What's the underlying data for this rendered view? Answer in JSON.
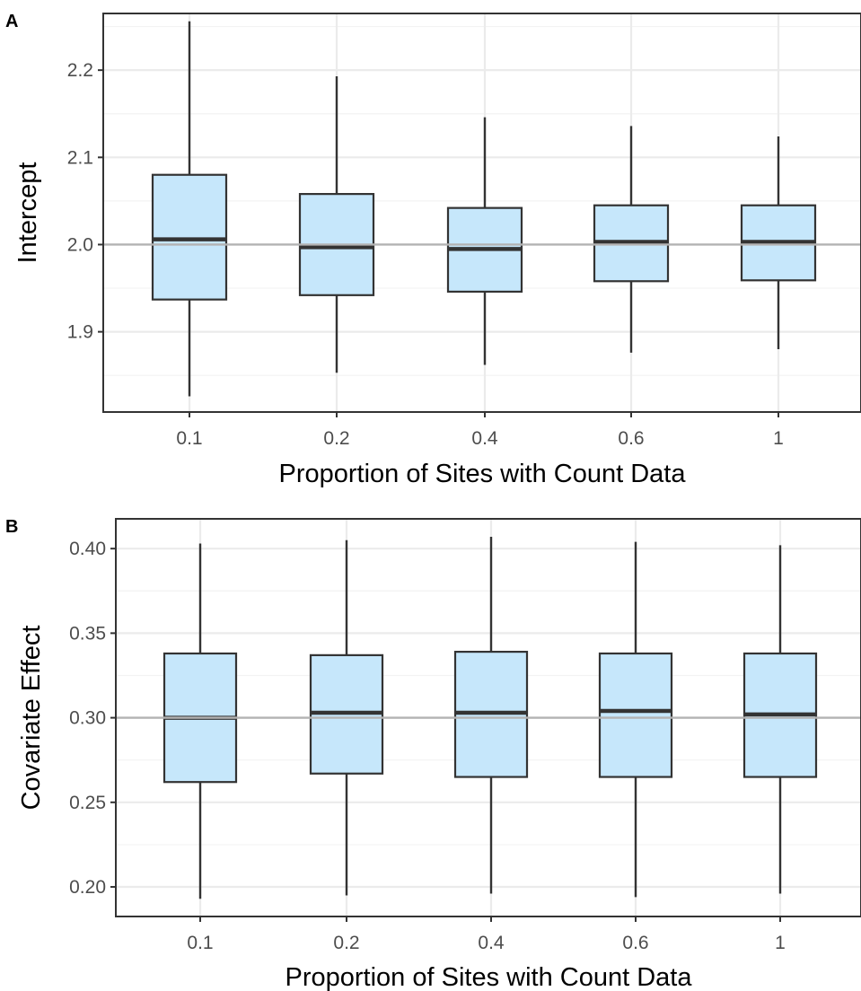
{
  "colors": {
    "box_fill": "#c6e7fb",
    "box_stroke": "#333333",
    "reference_line": "#b3b3b3",
    "grid_major": "#ebebeb",
    "grid_minor": "#f3f3f3",
    "panel_border": "#333333"
  },
  "chart_data": [
    {
      "type": "box",
      "panel_label": "A",
      "xlabel": "Proportion of Sites with Count Data",
      "ylabel": "Intercept",
      "categories": [
        "0.1",
        "0.2",
        "0.4",
        "0.6",
        "1"
      ],
      "yticks": [
        "1.9",
        "2.0",
        "2.1",
        "2.2"
      ],
      "ylim": [
        1.808,
        2.265
      ],
      "reference_line": 2.0,
      "boxes": [
        {
          "category": "0.1",
          "whisker_low": 1.826,
          "q1": 1.937,
          "median": 2.006,
          "q3": 2.08,
          "whisker_high": 2.256
        },
        {
          "category": "0.2",
          "whisker_low": 1.853,
          "q1": 1.942,
          "median": 1.997,
          "q3": 2.058,
          "whisker_high": 2.193
        },
        {
          "category": "0.4",
          "whisker_low": 1.862,
          "q1": 1.946,
          "median": 1.995,
          "q3": 2.042,
          "whisker_high": 2.146
        },
        {
          "category": "0.6",
          "whisker_low": 1.876,
          "q1": 1.958,
          "median": 2.003,
          "q3": 2.045,
          "whisker_high": 2.136
        },
        {
          "category": "1",
          "whisker_low": 1.88,
          "q1": 1.959,
          "median": 2.003,
          "q3": 2.045,
          "whisker_high": 2.124
        }
      ],
      "grid": true,
      "legend": "none"
    },
    {
      "type": "box",
      "panel_label": "B",
      "xlabel": "Proportion of Sites with Count Data",
      "ylabel": "Covariate Effect",
      "categories": [
        "0.1",
        "0.2",
        "0.4",
        "0.6",
        "1"
      ],
      "yticks": [
        "0.20",
        "0.25",
        "0.30",
        "0.35",
        "0.40"
      ],
      "ylim": [
        0.1825,
        0.4176
      ],
      "reference_line": 0.3,
      "boxes": [
        {
          "category": "0.1",
          "whisker_low": 0.193,
          "q1": 0.262,
          "median": 0.3,
          "q3": 0.338,
          "whisker_high": 0.403
        },
        {
          "category": "0.2",
          "whisker_low": 0.195,
          "q1": 0.267,
          "median": 0.303,
          "q3": 0.337,
          "whisker_high": 0.405
        },
        {
          "category": "0.4",
          "whisker_low": 0.196,
          "q1": 0.265,
          "median": 0.303,
          "q3": 0.339,
          "whisker_high": 0.407
        },
        {
          "category": "0.6",
          "whisker_low": 0.194,
          "q1": 0.265,
          "median": 0.304,
          "q3": 0.338,
          "whisker_high": 0.404
        },
        {
          "category": "1",
          "whisker_low": 0.196,
          "q1": 0.265,
          "median": 0.302,
          "q3": 0.338,
          "whisker_high": 0.402
        }
      ],
      "grid": true,
      "legend": "none"
    }
  ]
}
